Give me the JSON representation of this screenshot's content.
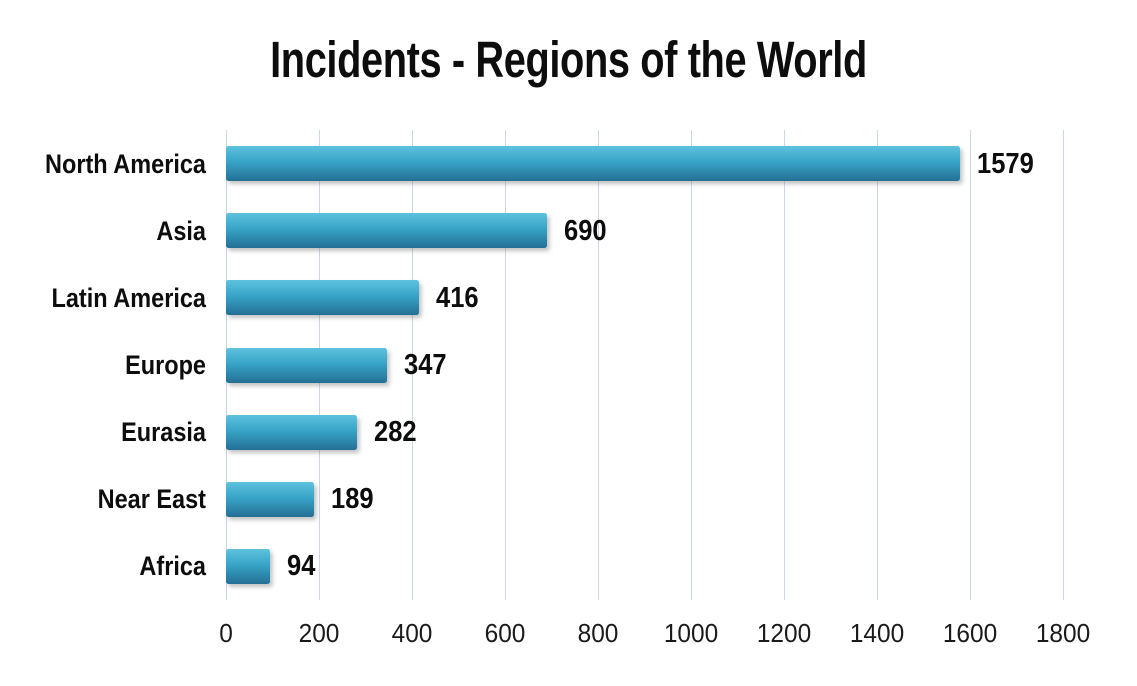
{
  "chart_data": {
    "type": "bar",
    "orientation": "horizontal",
    "title": "Incidents - Regions of the World",
    "categories": [
      "North America",
      "Asia",
      "Latin America",
      "Europe",
      "Eurasia",
      "Near East",
      "Africa"
    ],
    "values": [
      1579,
      690,
      416,
      347,
      282,
      189,
      94
    ],
    "xlabel": "",
    "ylabel": "",
    "xlim": [
      0,
      1800
    ],
    "x_ticks": [
      0,
      200,
      400,
      600,
      800,
      1000,
      1200,
      1400,
      1600,
      1800
    ],
    "grid": "vertical-gridlines-on",
    "legend": "none",
    "colors": {
      "bar_top": "#5ec2de",
      "bar_mid": "#37a4c7",
      "bar_bottom": "#256f95",
      "gridline": "#c9d6e8",
      "title_text": "#0d0d0d",
      "label_text": "#0d0d0d",
      "axis_text": "#1a1a1a",
      "background": "#ffffff"
    }
  }
}
